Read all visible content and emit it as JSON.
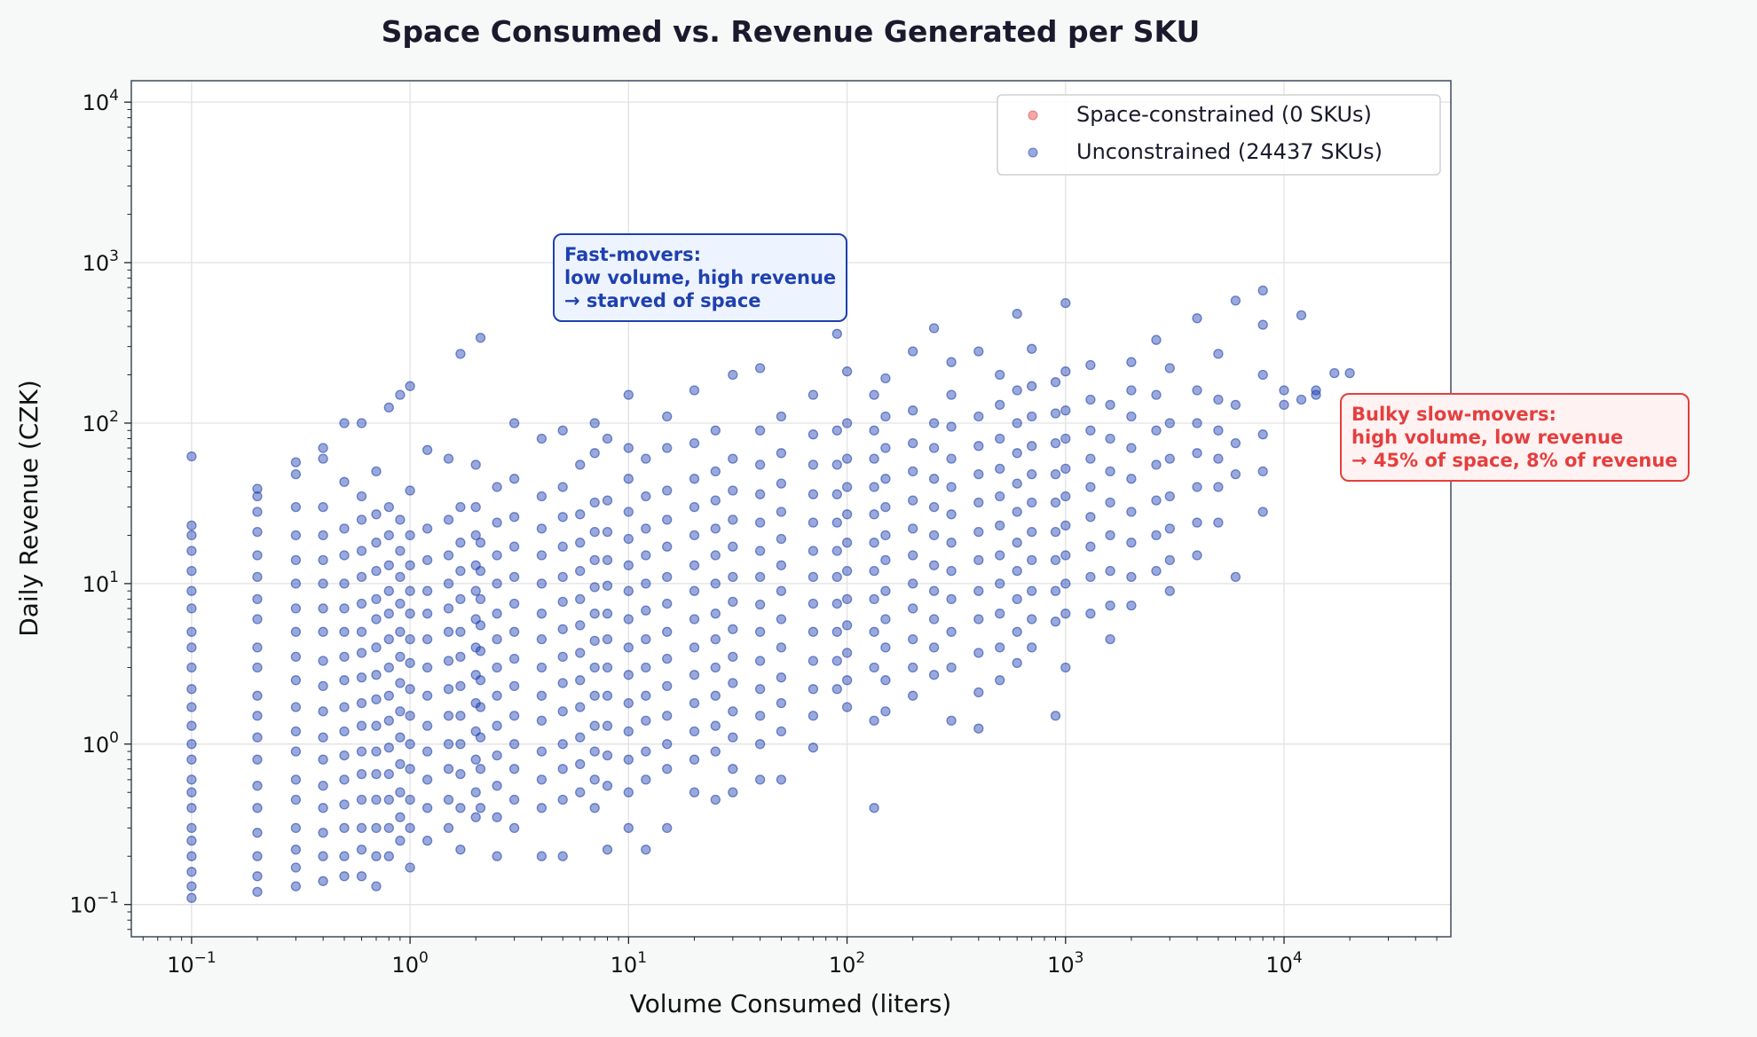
{
  "chart_data": {
    "type": "scatter",
    "title": "Space Consumed vs. Revenue Generated per SKU",
    "xlabel": "Volume Consumed (liters)",
    "ylabel": "Daily Revenue (CZK)",
    "xscale": "log",
    "yscale": "log",
    "xlim": [
      0.053,
      58000
    ],
    "ylim": [
      0.063,
      13600
    ],
    "xticks": [
      0.1,
      1,
      10,
      100,
      1000,
      10000
    ],
    "xtick_labels": [
      {
        "base": "10",
        "exp": "−1"
      },
      {
        "base": "10",
        "exp": "0"
      },
      {
        "base": "10",
        "exp": "1"
      },
      {
        "base": "10",
        "exp": "2"
      },
      {
        "base": "10",
        "exp": "3"
      },
      {
        "base": "10",
        "exp": "4"
      }
    ],
    "yticks": [
      0.1,
      1,
      10,
      100,
      1000,
      10000
    ],
    "ytick_labels": [
      {
        "base": "10",
        "exp": "−1"
      },
      {
        "base": "10",
        "exp": "0"
      },
      {
        "base": "10",
        "exp": "1"
      },
      {
        "base": "10",
        "exp": "2"
      },
      {
        "base": "10",
        "exp": "3"
      },
      {
        "base": "10",
        "exp": "4"
      }
    ],
    "grid": true,
    "legend_position": "top-right",
    "series": [
      {
        "name": "Space-constrained (0 SKUs)",
        "color": "#e53e3e",
        "points": []
      },
      {
        "name": "Unconstrained (24437 SKUs)",
        "color": "#1e40af",
        "points_by_x": [
          [
            0.1,
            [
              0.11,
              0.13,
              0.16,
              0.2,
              0.25,
              0.3,
              0.4,
              0.5,
              0.6,
              0.8,
              1,
              1.3,
              1.7,
              2.2,
              3,
              4,
              5,
              7,
              9,
              12,
              16,
              20,
              23,
              62
            ]
          ],
          [
            0.2,
            [
              0.12,
              0.15,
              0.2,
              0.28,
              0.4,
              0.55,
              0.8,
              1.1,
              1.5,
              2,
              3,
              4,
              6,
              8,
              11,
              15,
              21,
              28,
              35,
              39
            ]
          ],
          [
            0.3,
            [
              0.13,
              0.17,
              0.22,
              0.3,
              0.45,
              0.6,
              0.9,
              1.2,
              1.7,
              2.5,
              3.5,
              5,
              7,
              10,
              14,
              20,
              30,
              48,
              57
            ]
          ],
          [
            0.4,
            [
              0.14,
              0.2,
              0.28,
              0.4,
              0.55,
              0.8,
              1.1,
              1.6,
              2.3,
              3.3,
              5,
              7,
              10,
              14,
              20,
              30,
              60,
              70
            ]
          ],
          [
            0.5,
            [
              0.15,
              0.2,
              0.3,
              0.42,
              0.6,
              0.85,
              1.2,
              1.7,
              2.5,
              3.5,
              5,
              7,
              10,
              15,
              22,
              43,
              100
            ]
          ],
          [
            0.6,
            [
              0.15,
              0.22,
              0.3,
              0.45,
              0.65,
              0.9,
              1.3,
              1.8,
              2.6,
              3.7,
              5,
              7.5,
              11,
              16,
              25,
              35,
              100
            ]
          ],
          [
            0.7,
            [
              0.13,
              0.2,
              0.3,
              0.45,
              0.65,
              0.9,
              1.3,
              1.9,
              2.7,
              4,
              6,
              8,
              12,
              18,
              27,
              50
            ]
          ],
          [
            0.8,
            [
              0.2,
              0.3,
              0.45,
              0.65,
              0.95,
              1.4,
              2,
              3,
              4.5,
              6.5,
              9,
              13,
              20,
              30,
              125
            ]
          ],
          [
            0.9,
            [
              0.25,
              0.35,
              0.5,
              0.75,
              1.1,
              1.6,
              2.4,
              3.5,
              5,
              7.5,
              11,
              16,
              25,
              150
            ]
          ],
          [
            1,
            [
              0.17,
              0.3,
              0.45,
              0.7,
              1,
              1.5,
              2.2,
              3.2,
              4.5,
              6.5,
              9,
              13,
              20,
              38,
              170
            ]
          ],
          [
            1.2,
            [
              0.25,
              0.4,
              0.6,
              0.9,
              1.3,
              2,
              3,
              4.5,
              6.5,
              9,
              14,
              22,
              68
            ]
          ],
          [
            1.5,
            [
              0.3,
              0.45,
              0.7,
              1,
              1.5,
              2.2,
              3.3,
              5,
              7,
              10,
              15,
              25,
              60
            ]
          ],
          [
            1.7,
            [
              0.22,
              0.4,
              0.65,
              1,
              1.5,
              2.3,
              3.5,
              5,
              8,
              12,
              18,
              30,
              270
            ]
          ],
          [
            2,
            [
              0.35,
              0.5,
              0.8,
              1.2,
              1.8,
              2.7,
              4,
              6,
              9,
              13,
              20,
              30,
              55
            ]
          ],
          [
            2.1,
            [
              0.4,
              0.7,
              1.1,
              1.7,
              2.5,
              3.8,
              5.5,
              8,
              12,
              18,
              340
            ]
          ],
          [
            2.5,
            [
              0.2,
              0.35,
              0.55,
              0.85,
              1.3,
              2,
              3,
              4.5,
              6.5,
              10,
              15,
              24,
              40
            ]
          ],
          [
            3,
            [
              0.3,
              0.45,
              0.7,
              1,
              1.5,
              2.3,
              3.4,
              5,
              7.5,
              11,
              17,
              26,
              45,
              100
            ]
          ],
          [
            4,
            [
              0.2,
              0.4,
              0.6,
              0.9,
              1.4,
              2,
              3,
              4.5,
              6.5,
              10,
              15,
              22,
              35,
              80
            ]
          ],
          [
            5,
            [
              0.2,
              0.45,
              0.7,
              1,
              1.6,
              2.4,
              3.5,
              5.2,
              7.7,
              11,
              17,
              26,
              40,
              90
            ]
          ],
          [
            6,
            [
              0.5,
              0.75,
              1.1,
              1.7,
              2.5,
              3.7,
              5.5,
              8,
              12,
              18,
              27,
              55
            ]
          ],
          [
            7,
            [
              0.4,
              0.6,
              0.9,
              1.3,
              2,
              3,
              4.4,
              6.5,
              9.5,
              14,
              21,
              32,
              65,
              100
            ]
          ],
          [
            8,
            [
              0.22,
              0.55,
              0.85,
              1.3,
              2,
              3,
              4.5,
              6.5,
              9.7,
              14,
              21,
              33,
              80
            ]
          ],
          [
            10,
            [
              0.3,
              0.5,
              0.8,
              1.2,
              1.8,
              2.7,
              4,
              6,
              9,
              13,
              19,
              28,
              45,
              70,
              150
            ]
          ],
          [
            12,
            [
              0.22,
              0.6,
              0.9,
              1.4,
              2,
              3,
              4.5,
              6.8,
              10,
              15,
              22,
              35,
              60
            ]
          ],
          [
            15,
            [
              0.3,
              0.7,
              1,
              1.5,
              2.3,
              3.4,
              5,
              7.5,
              11,
              17,
              25,
              38,
              70,
              110
            ]
          ],
          [
            20,
            [
              0.5,
              0.8,
              1.2,
              1.8,
              2.7,
              4,
              6,
              9,
              13,
              20,
              30,
              45,
              75,
              160
            ]
          ],
          [
            25,
            [
              0.45,
              0.9,
              1.3,
              2,
              3,
              4.5,
              6.5,
              10,
              15,
              22,
              33,
              50,
              90
            ]
          ],
          [
            30,
            [
              0.5,
              0.7,
              1.1,
              1.6,
              2.4,
              3.5,
              5.2,
              7.7,
              11,
              17,
              25,
              38,
              60,
              200
            ]
          ],
          [
            40,
            [
              0.6,
              1,
              1.5,
              2.2,
              3.3,
              5,
              7.4,
              11,
              16,
              24,
              36,
              55,
              90,
              220
            ]
          ],
          [
            50,
            [
              0.6,
              1.2,
              1.8,
              2.6,
              4,
              6,
              9,
              13,
              19,
              28,
              42,
              65,
              110
            ]
          ],
          [
            70,
            [
              0.95,
              1.5,
              2.2,
              3.3,
              5,
              7.5,
              11,
              16,
              24,
              36,
              55,
              85,
              150
            ]
          ],
          [
            90,
            [
              2.2,
              3.3,
              5,
              7.5,
              11,
              16,
              24,
              36,
              55,
              90,
              360
            ]
          ],
          [
            100,
            [
              1.7,
              2.5,
              3.7,
              5.5,
              8,
              12,
              18,
              27,
              40,
              60,
              100,
              210
            ]
          ],
          [
            133,
            [
              0.4,
              1.4,
              3,
              5,
              8,
              12,
              18,
              27,
              40,
              60,
              90,
              150
            ]
          ],
          [
            150,
            [
              1.6,
              2.5,
              4,
              6,
              9,
              14,
              20,
              30,
              45,
              70,
              110,
              190
            ]
          ],
          [
            200,
            [
              2,
              3,
              4.5,
              7,
              10,
              15,
              22,
              33,
              50,
              75,
              120,
              280
            ]
          ],
          [
            250,
            [
              2.7,
              4,
              6,
              9,
              13,
              20,
              30,
              45,
              70,
              100,
              390
            ]
          ],
          [
            300,
            [
              1.4,
              3,
              5,
              8,
              12,
              18,
              27,
              40,
              60,
              95,
              150,
              240
            ]
          ],
          [
            400,
            [
              1.25,
              2.1,
              3.7,
              6,
              9,
              14,
              21,
              32,
              48,
              72,
              110,
              280
            ]
          ],
          [
            500,
            [
              2.5,
              4,
              6.5,
              10,
              15,
              23,
              35,
              52,
              80,
              130,
              200
            ]
          ],
          [
            600,
            [
              3.2,
              5,
              8,
              12,
              18,
              28,
              42,
              65,
              100,
              160,
              480
            ]
          ],
          [
            700,
            [
              4,
              6,
              9,
              14,
              21,
              32,
              48,
              72,
              110,
              170,
              290
            ]
          ],
          [
            900,
            [
              1.5,
              5.8,
              9,
              14,
              21,
              32,
              48,
              75,
              115,
              180
            ]
          ],
          [
            1000,
            [
              3,
              6.5,
              10,
              15,
              23,
              35,
              52,
              80,
              120,
              210,
              560
            ]
          ],
          [
            1300,
            [
              6.5,
              11,
              17,
              26,
              40,
              60,
              90,
              140,
              230
            ]
          ],
          [
            1600,
            [
              4.5,
              7.3,
              12,
              20,
              32,
              50,
              80,
              130
            ]
          ],
          [
            2000,
            [
              7.3,
              11,
              18,
              28,
              45,
              70,
              110,
              160,
              240
            ]
          ],
          [
            2600,
            [
              12,
              20,
              33,
              55,
              90,
              150,
              330
            ]
          ],
          [
            3000,
            [
              9,
              14,
              22,
              35,
              60,
              100,
              220
            ]
          ],
          [
            4000,
            [
              15,
              24,
              40,
              65,
              100,
              160,
              450
            ]
          ],
          [
            5000,
            [
              24,
              40,
              60,
              90,
              140,
              270
            ]
          ],
          [
            6000,
            [
              11,
              48,
              75,
              130,
              580
            ]
          ],
          [
            8000,
            [
              28,
              50,
              85,
              200,
              410,
              670
            ]
          ],
          [
            10000,
            [
              130,
              160
            ]
          ],
          [
            12000,
            [
              140,
              470
            ]
          ],
          [
            14000,
            [
              150,
              160
            ]
          ],
          [
            17000,
            [
              205
            ]
          ],
          [
            20000,
            [
              205
            ]
          ]
        ]
      }
    ],
    "annotations": [
      {
        "text": "Fast-movers:\nlow volume, high revenue\n→ starved of space",
        "color": "#1e40af",
        "background": "#eef4ff"
      },
      {
        "text": "Bulky slow-movers:\nhigh volume, low revenue\n→ 45% of space, 8% of revenue",
        "color": "#e53e3e",
        "background": "#fff2f2"
      }
    ]
  }
}
